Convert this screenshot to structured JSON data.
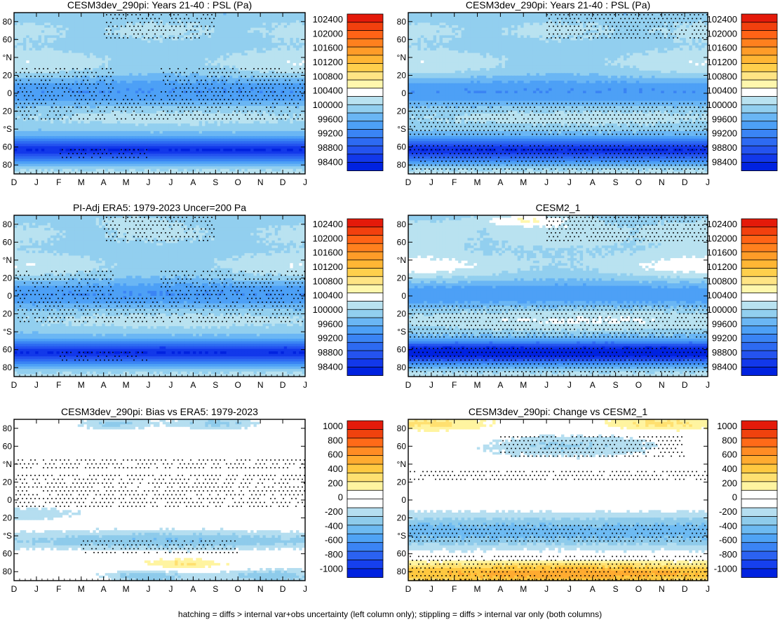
{
  "figure": {
    "caption": "hatching = diffs > internal var+obs uncertainty (left column only); stippling = diffs > internal var only (both columns)"
  },
  "palettes": {
    "absolute": [
      "#0022e0",
      "#1238ea",
      "#2453ef",
      "#2d6af2",
      "#3a84f4",
      "#4da0f6",
      "#6ab6f4",
      "#92cfef",
      "#b9e2f0",
      "#ffffff",
      "#fff7ad",
      "#ffe484",
      "#ffcf4c",
      "#ffb634",
      "#ff9c28",
      "#ff801e",
      "#ff6316",
      "#f2400e",
      "#e41a0a"
    ],
    "anomaly": [
      "#0022e0",
      "#1640ee",
      "#2b62f2",
      "#3b84f4",
      "#4fa3f5",
      "#6dbaf2",
      "#8ecbeb",
      "#b5def0",
      "#ffffff",
      "#ffffff",
      "#fff4a0",
      "#ffe070",
      "#ffc840",
      "#ffab30",
      "#ff8c24",
      "#ff6a18",
      "#f0420e",
      "#e41a0a"
    ]
  },
  "chart_data": [
    {
      "id": "p1",
      "type": "heatmap",
      "title": "CESM3dev_290pi: Years 21-40 : PSL (Pa)",
      "x_tick_labels": [
        "D",
        "J",
        "F",
        "M",
        "A",
        "M",
        "J",
        "J",
        "A",
        "S",
        "O",
        "N",
        "D",
        "J"
      ],
      "y_tick_labels": [
        "80",
        "60",
        "°N",
        "20",
        "0",
        "20",
        "°S",
        "60",
        "80"
      ],
      "ylim": [
        -90,
        90
      ],
      "colorbar": {
        "palette": "absolute",
        "labels": [
          "102400",
          "102000",
          "101600",
          "101200",
          "100800",
          "100400",
          "100000",
          "99600",
          "99200",
          "98800",
          "98400"
        ]
      },
      "field": {
        "base": 100700,
        "amp": 1.0,
        "jul_sh_gain": 0.3,
        "polar_n_boost": 0,
        "noise": 140,
        "seed": 3
      },
      "stipple": {
        "mask": "left",
        "density": 0.7
      },
      "hatch": false
    },
    {
      "id": "p2",
      "type": "heatmap",
      "title": "CESM3dev_290pi: Years 21-40 : PSL (Pa)",
      "x_tick_labels": [
        "D",
        "J",
        "F",
        "M",
        "A",
        "M",
        "J",
        "J",
        "A",
        "S",
        "O",
        "N",
        "D",
        "J"
      ],
      "y_tick_labels": [
        "80",
        "60",
        "°N",
        "20",
        "0",
        "20",
        "°S",
        "60",
        "80"
      ],
      "ylim": [
        -90,
        90
      ],
      "colorbar": {
        "palette": "absolute",
        "labels": [
          "102400",
          "102000",
          "101600",
          "101200",
          "100800",
          "100400",
          "100000",
          "99600",
          "99200",
          "98800",
          "98400"
        ]
      },
      "field": {
        "base": 100700,
        "amp": 1.0,
        "jul_sh_gain": 0.35,
        "polar_n_boost": 0,
        "noise": 140,
        "seed": 3
      },
      "stipple": {
        "mask": "right",
        "density": 0.9
      },
      "hatch": false
    },
    {
      "id": "p3",
      "type": "heatmap",
      "title": "PI-Adj ERA5: 1979-2023 Uncer=200 Pa",
      "x_tick_labels": [
        "D",
        "J",
        "F",
        "M",
        "A",
        "M",
        "J",
        "J",
        "A",
        "S",
        "O",
        "N",
        "D",
        "J"
      ],
      "y_tick_labels": [
        "80",
        "60",
        "°N",
        "20",
        "0",
        "20",
        "°S",
        "60",
        "80"
      ],
      "ylim": [
        -90,
        90
      ],
      "colorbar": {
        "palette": "absolute",
        "labels": [
          "102400",
          "102000",
          "101600",
          "101200",
          "100800",
          "100400",
          "100000",
          "99600",
          "99200",
          "98800",
          "98400"
        ]
      },
      "field": {
        "base": 100700,
        "amp": 1.0,
        "jul_sh_gain": 0.35,
        "polar_n_boost": 350,
        "noise": 150,
        "seed": 9
      },
      "stipple": {
        "mask": "left",
        "density": 0.7
      },
      "hatch": false
    },
    {
      "id": "p4",
      "type": "heatmap",
      "title": "CESM2_1",
      "x_tick_labels": [
        "D",
        "J",
        "F",
        "M",
        "A",
        "M",
        "J",
        "J",
        "A",
        "S",
        "O",
        "N",
        "D",
        "J"
      ],
      "y_tick_labels": [
        "80",
        "60",
        "°N",
        "20",
        "0",
        "20",
        "°S",
        "60",
        "80"
      ],
      "ylim": [
        -90,
        90
      ],
      "colorbar": {
        "palette": "absolute",
        "labels": [
          "102400",
          "102000",
          "101600",
          "101200",
          "100800",
          "100400",
          "100000",
          "99600",
          "99200",
          "98800",
          "98400"
        ]
      },
      "field": {
        "base": 100750,
        "amp": 1.25,
        "jul_sh_gain": 0.45,
        "polar_n_boost": 900,
        "noise": 150,
        "seed": 17
      },
      "stipple": {
        "mask": "right",
        "density": 0.9
      },
      "hatch": false
    },
    {
      "id": "p5",
      "type": "heatmap",
      "title": "CESM3dev_290pi: Bias vs ERA5: 1979-2023",
      "x_tick_labels": [
        "D",
        "J",
        "F",
        "M",
        "A",
        "M",
        "J",
        "J",
        "A",
        "S",
        "O",
        "N",
        "D",
        "J"
      ],
      "y_tick_labels": [
        "80",
        "60",
        "°N",
        "20",
        "0",
        "20",
        "°S",
        "60",
        "80"
      ],
      "ylim": [
        -90,
        90
      ],
      "colorbar": {
        "palette": "anomaly",
        "labels": [
          "1000",
          "800",
          "600",
          "400",
          "200",
          "0",
          "-200",
          "-400",
          "-600",
          "-800",
          "-1000"
        ]
      },
      "field": {
        "kind": "bias",
        "noise": 60,
        "seed": 21
      },
      "stipple": {
        "mask": "bias",
        "density": 0.8
      },
      "hatch": true
    },
    {
      "id": "p6",
      "type": "heatmap",
      "title": "CESM3dev_290pi: Change vs CESM2_1",
      "x_tick_labels": [
        "D",
        "J",
        "F",
        "M",
        "A",
        "M",
        "J",
        "J",
        "A",
        "S",
        "O",
        "N",
        "D",
        "J"
      ],
      "y_tick_labels": [
        "80",
        "60",
        "°N",
        "20",
        "0",
        "20",
        "°S",
        "60",
        "80"
      ],
      "ylim": [
        -90,
        90
      ],
      "colorbar": {
        "palette": "anomaly",
        "labels": [
          "1000",
          "800",
          "600",
          "400",
          "200",
          "0",
          "-200",
          "-400",
          "-600",
          "-800",
          "-1000"
        ]
      },
      "field": {
        "kind": "change",
        "noise": 60,
        "seed": 33
      },
      "stipple": {
        "mask": "change",
        "density": 0.85
      },
      "hatch": false
    }
  ]
}
